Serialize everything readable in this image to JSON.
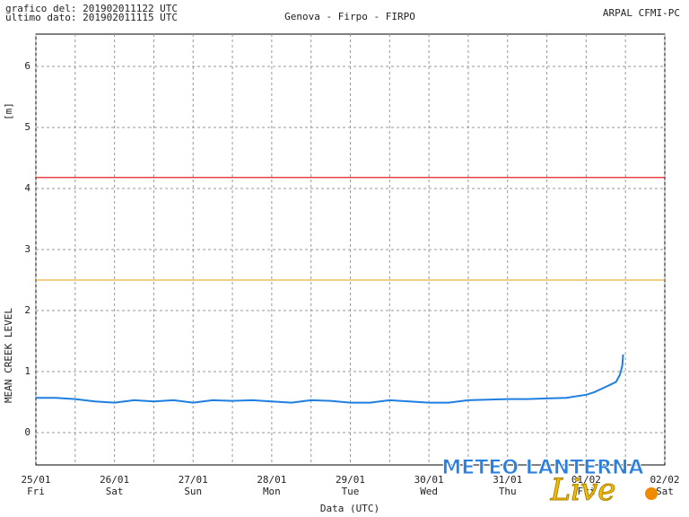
{
  "chart_data": {
    "type": "line",
    "header_left": [
      "grafico del: 201902011122 UTC",
      "ultimo dato: 201902011115 UTC"
    ],
    "title": "Genova - Firpo - FIRPO",
    "header_right": "ARPAL CFMI-PC",
    "y_unit": "[m]",
    "y_label": "MEAN CREEK LEVEL",
    "x_label": "Data (UTC)",
    "watermark": [
      "METEO LANTERNA",
      "Live"
    ],
    "xlim": [
      0,
      8
    ],
    "xticks": [
      {
        "value": 0,
        "label": "25/01"
      },
      {
        "value": 1,
        "label": "26/01"
      },
      {
        "value": 2,
        "label": "27/01"
      },
      {
        "value": 3,
        "label": "28/01"
      },
      {
        "value": 4,
        "label": "29/01"
      },
      {
        "value": 5,
        "label": "30/01"
      },
      {
        "value": 6,
        "label": "31/01"
      },
      {
        "value": 7,
        "label": "01/02"
      },
      {
        "value": 8,
        "label": "02/02"
      }
    ],
    "xtick_days": [
      "Fri",
      "Sat",
      "Sun",
      "Mon",
      "Tue",
      "Wed",
      "Thu",
      "Fri",
      "Sat"
    ],
    "xminorticks": [
      0.5,
      1.5,
      2.5,
      3.5,
      4.5,
      5.5,
      6.5,
      7.5
    ],
    "ylim": [
      -0.53,
      6.53
    ],
    "yticks": [
      0,
      1,
      2,
      3,
      4,
      5,
      6
    ],
    "grid": true,
    "thresholds": [
      {
        "value": 4.18,
        "color": "#e02020"
      },
      {
        "value": 2.5,
        "color": "#f0b040"
      }
    ],
    "series": [
      {
        "color": "#1e7fe0",
        "x": [
          0,
          0.25,
          0.5,
          0.75,
          1,
          1.25,
          1.5,
          1.75,
          2,
          2.25,
          2.5,
          2.75,
          3,
          3.25,
          3.5,
          3.75,
          4,
          4.25,
          4.5,
          4.75,
          5,
          5.25,
          5.5,
          5.75,
          6,
          6.25,
          6.5,
          6.75,
          7,
          7.1,
          7.2,
          7.3,
          7.38,
          7.43,
          7.46,
          7.47
        ],
        "values": [
          0.57,
          0.57,
          0.55,
          0.51,
          0.49,
          0.53,
          0.51,
          0.53,
          0.49,
          0.53,
          0.52,
          0.53,
          0.51,
          0.49,
          0.53,
          0.52,
          0.49,
          0.49,
          0.53,
          0.51,
          0.49,
          0.49,
          0.53,
          0.54,
          0.55,
          0.55,
          0.56,
          0.57,
          0.62,
          0.66,
          0.72,
          0.78,
          0.83,
          0.95,
          1.1,
          1.28
        ]
      }
    ]
  }
}
